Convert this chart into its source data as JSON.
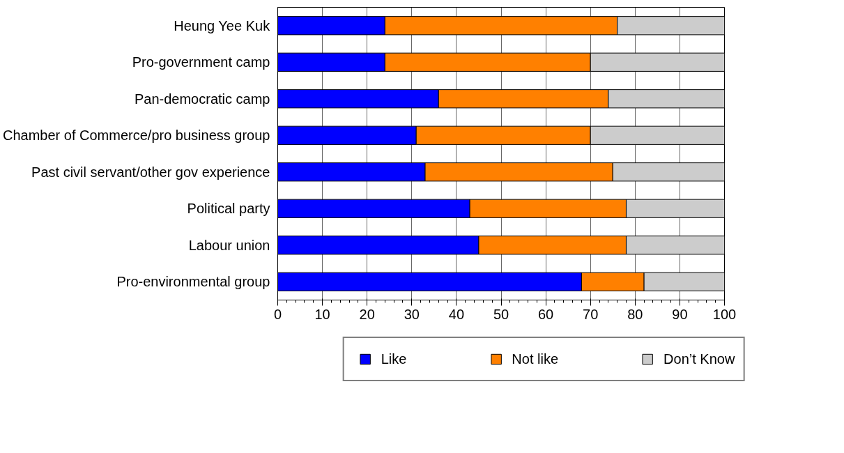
{
  "chart_data": {
    "type": "bar",
    "orientation": "horizontal",
    "stacked": true,
    "categories": [
      "Heung Yee Kuk",
      "Pro-government camp",
      "Pan-democratic camp",
      "Chamber of Commerce/pro business group",
      "Past civil servant/other gov experience",
      "Political party",
      "Labour union",
      "Pro-environmental group"
    ],
    "series": [
      {
        "name": "Like",
        "color": "#0000ff",
        "values": [
          24,
          24,
          36,
          31,
          33,
          43,
          45,
          68
        ]
      },
      {
        "name": "Not like",
        "color": "#ff8000",
        "values": [
          52,
          46,
          38,
          39,
          42,
          35,
          33,
          14
        ]
      },
      {
        "name": "Don’t Know",
        "color": "#cccccc",
        "values": [
          24,
          30,
          26,
          30,
          25,
          22,
          22,
          18
        ]
      }
    ],
    "xlim": [
      0,
      100
    ],
    "xticks": [
      0,
      10,
      20,
      30,
      40,
      50,
      60,
      70,
      80,
      90,
      100
    ],
    "grid": "x",
    "legend": "bottom"
  }
}
